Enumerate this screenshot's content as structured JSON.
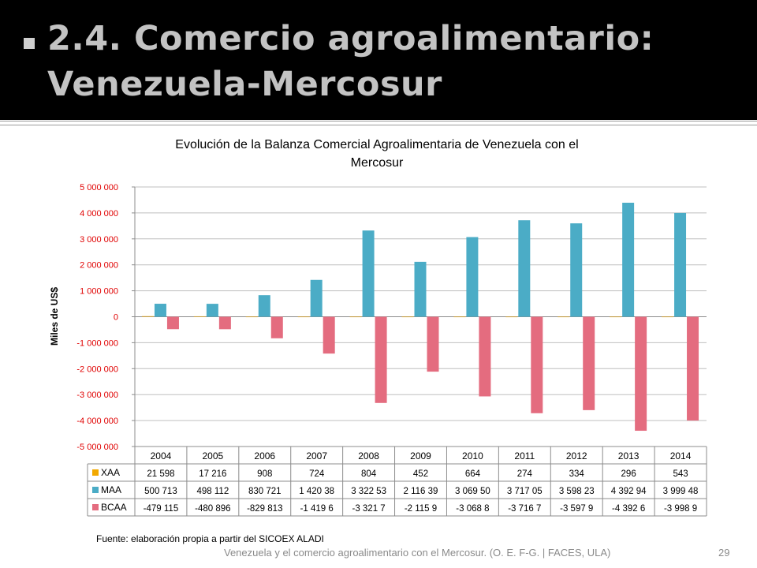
{
  "slide": {
    "title": "2.4. Comercio agroalimentario:\nVenezuela-Mercosur",
    "source_note": "Fuente: elaboración propia a partir del SICOEX ALADI",
    "footer": "Venezuela y el comercio agroalimentario con el Mercosur. (O. E. F-G. | FACES, ULA)",
    "page_number": "29"
  },
  "chart_data": {
    "type": "bar",
    "title_lines": [
      "Evolución de la Balanza Comercial Agroalimentaria de Venezuela con el",
      "Mercosur"
    ],
    "ylabel": "Miles de US$",
    "ylim": [
      -5000000,
      5000000
    ],
    "yticks": [
      5000000,
      4000000,
      3000000,
      2000000,
      1000000,
      0,
      -1000000,
      -2000000,
      -3000000,
      -4000000,
      -5000000
    ],
    "ytick_labels": [
      "5 000 000",
      "4 000 000",
      "3 000 000",
      "2 000 000",
      "1 000 000",
      "0",
      "-1 000 000",
      "-2 000 000",
      "-3 000 000",
      "-4 000 000",
      "-5 000 000"
    ],
    "tick_color": "#e00000",
    "grid": true,
    "categories": [
      "2004",
      "2005",
      "2006",
      "2007",
      "2008",
      "2009",
      "2010",
      "2011",
      "2012",
      "2013",
      "2014"
    ],
    "series": [
      {
        "name": "XAA",
        "color": "#f2a900",
        "values": [
          21598,
          17216,
          908,
          724,
          804,
          452,
          664,
          274,
          334,
          296,
          543
        ],
        "table_labels": [
          "21 598",
          "17 216",
          "908",
          "724",
          "804",
          "452",
          "664",
          "274",
          "334",
          "296",
          "543"
        ]
      },
      {
        "name": "MAA",
        "color": "#4bacc6",
        "values": [
          500713,
          498112,
          830721,
          1420380,
          3322530,
          2116390,
          3069500,
          3717050,
          3598230,
          4392940,
          3999480
        ],
        "table_labels": [
          "500 713",
          "498 112",
          "830 721",
          "1 420 38",
          "3 322 53",
          "2 116 39",
          "3 069 50",
          "3 717 05",
          "3 598 23",
          "4 392 94",
          "3 999 48"
        ]
      },
      {
        "name": "BCAA",
        "color": "#e46c7f",
        "values": [
          -479115,
          -480896,
          -829813,
          -1419600,
          -3321700,
          -2115900,
          -3068800,
          -3716700,
          -3597900,
          -4392600,
          -3998900
        ],
        "table_labels": [
          "-479 115",
          "-480 896",
          "-829 813",
          "-1 419 6",
          "-3 321 7",
          "-2 115 9",
          "-3 068 8",
          "-3 716 7",
          "-3 597 9",
          "-4 392 6",
          "-3 998 9"
        ]
      }
    ]
  }
}
